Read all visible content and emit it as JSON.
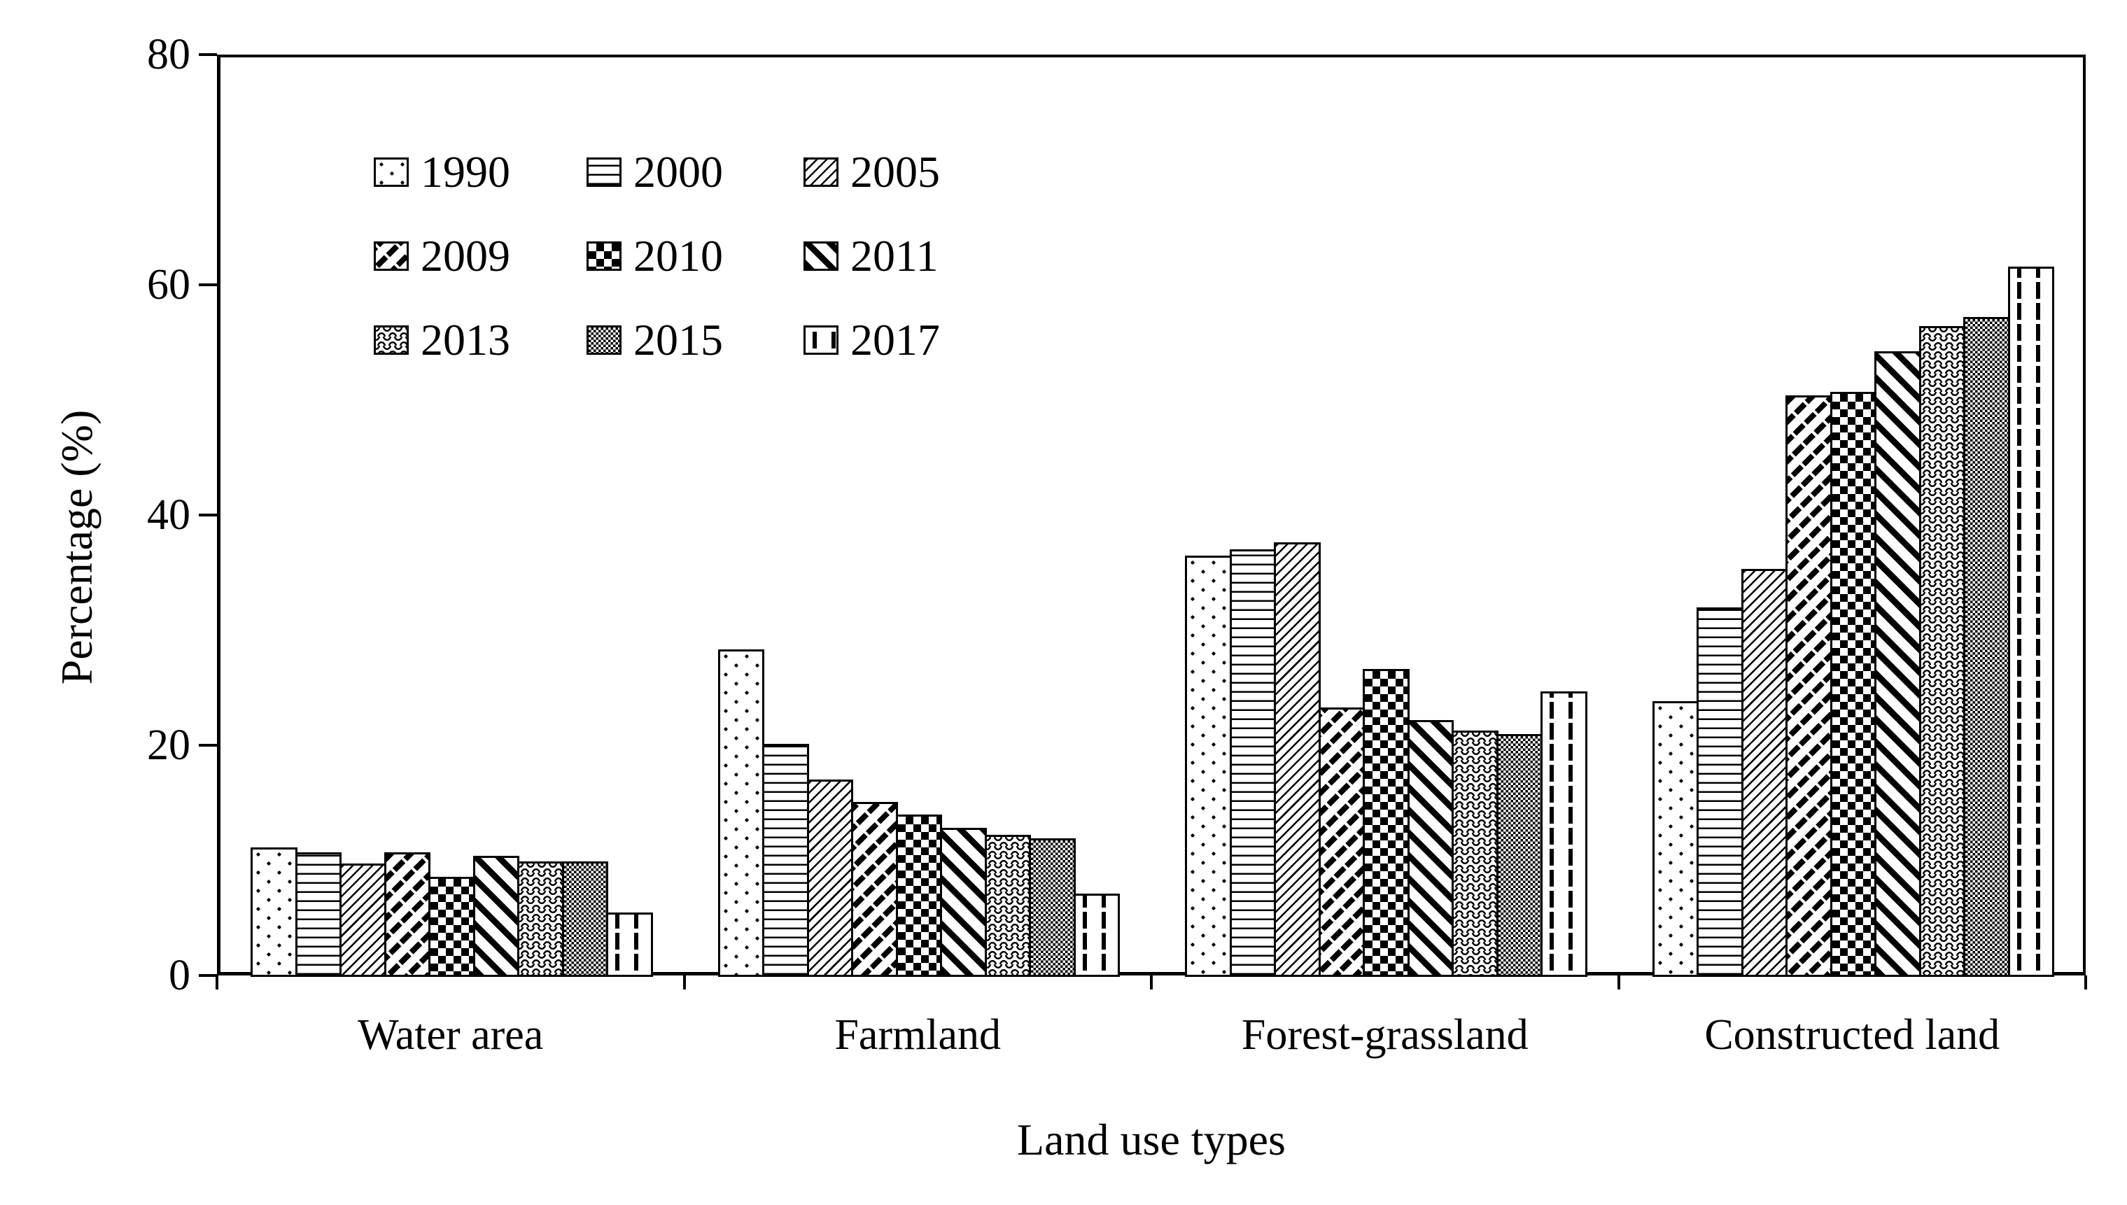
{
  "page": {
    "background": "#ffffff",
    "ink_color": "#000000"
  },
  "chart_data": {
    "type": "bar",
    "title": "",
    "xlabel": "Land use types",
    "ylabel": "Percentage (%)",
    "categories": [
      "Water area",
      "Farmland",
      "Forest-grassland",
      "Constructed land"
    ],
    "series": [
      {
        "name": "1990",
        "pattern": "dots",
        "values": [
          11.1,
          28.3,
          36.5,
          23.8
        ]
      },
      {
        "name": "2000",
        "pattern": "hlines",
        "values": [
          10.7,
          20.1,
          37.0,
          32.0
        ]
      },
      {
        "name": "2005",
        "pattern": "thin-diagonal",
        "values": [
          9.7,
          17.0,
          37.6,
          35.3
        ]
      },
      {
        "name": "2009",
        "pattern": "diagonal-dashes",
        "values": [
          10.7,
          15.1,
          23.3,
          50.4
        ]
      },
      {
        "name": "2010",
        "pattern": "checkerboard",
        "values": [
          8.6,
          14.0,
          26.6,
          50.7
        ]
      },
      {
        "name": "2011",
        "pattern": "thick-diagonal",
        "values": [
          10.4,
          12.8,
          22.2,
          54.2
        ]
      },
      {
        "name": "2013",
        "pattern": "waves",
        "values": [
          9.9,
          12.2,
          21.3,
          56.4
        ]
      },
      {
        "name": "2015",
        "pattern": "fine-grid",
        "values": [
          9.9,
          11.9,
          21.0,
          57.2
        ]
      },
      {
        "name": "2017",
        "pattern": "vertical-dashes",
        "values": [
          5.5,
          7.1,
          24.7,
          61.6
        ]
      }
    ],
    "ylim": [
      0,
      80
    ],
    "yticks": [
      "0",
      "20",
      "40",
      "60",
      "80"
    ],
    "grid": "off",
    "legend_position": "upper-left-inside",
    "legend_rows": 3,
    "legend_columns": 3,
    "bar_outline_color": "#000000",
    "bar_fill_color": "#ffffff"
  }
}
